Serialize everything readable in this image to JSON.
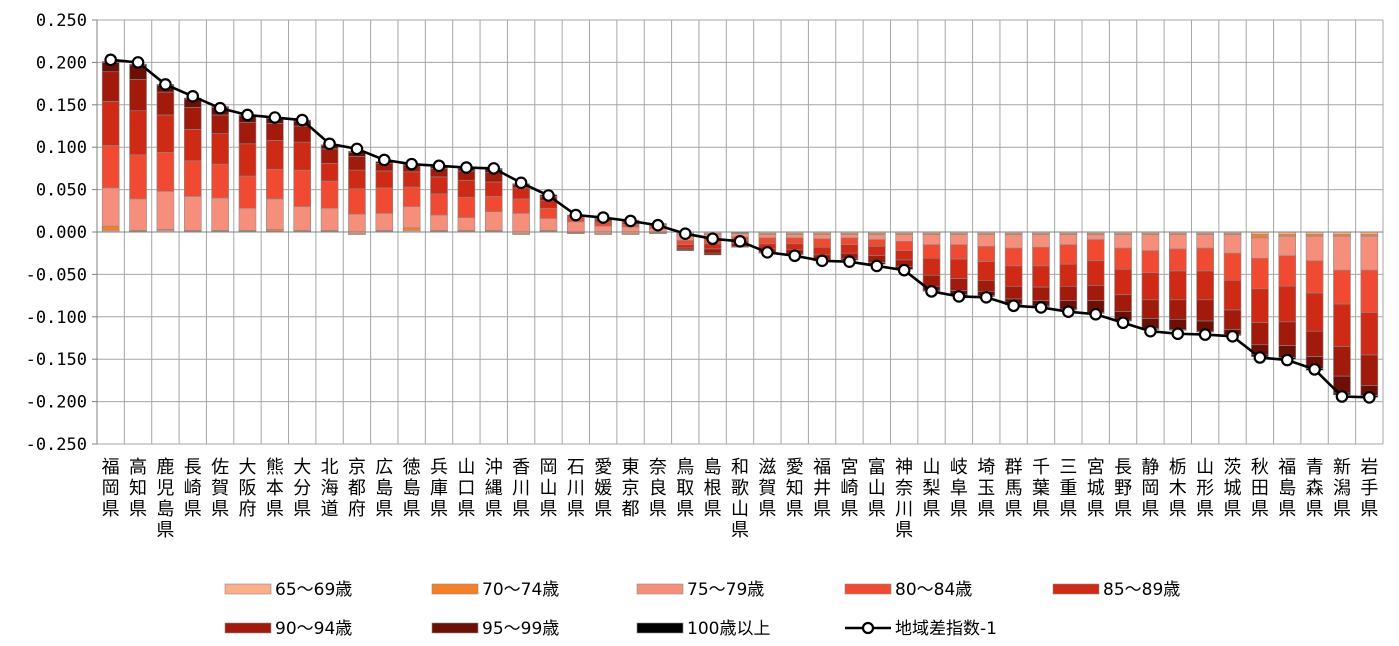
{
  "chart_data": {
    "type": "bar",
    "stacked": true,
    "ylim": [
      -0.25,
      0.25
    ],
    "yticks": [
      0.25,
      0.2,
      0.15,
      0.1,
      0.05,
      0.0,
      -0.05,
      -0.1,
      -0.15,
      -0.2,
      -0.25
    ],
    "ytick_labels": [
      "0.250",
      "0.200",
      "0.150",
      "0.100",
      "0.050",
      "0.000",
      "-0.050",
      "-0.100",
      "-0.150",
      "-0.200",
      "-0.250"
    ],
    "grid": true,
    "legend_position": "bottom",
    "categories": [
      "福岡県",
      "高知県",
      "鹿児島県",
      "長崎県",
      "佐賀県",
      "大阪府",
      "熊本県",
      "大分県",
      "北海道",
      "京都府",
      "広島県",
      "徳島県",
      "兵庫県",
      "山口県",
      "沖縄県",
      "香川県",
      "岡山県",
      "石川県",
      "愛媛県",
      "東京都",
      "奈良県",
      "鳥取県",
      "島根県",
      "和歌山県",
      "滋賀県",
      "愛知県",
      "福井県",
      "宮崎県",
      "富山県",
      "神奈川県",
      "山梨県",
      "岐阜県",
      "埼玉県",
      "群馬県",
      "千葉県",
      "三重県",
      "宮城県",
      "長野県",
      "静岡県",
      "栃木県",
      "山形県",
      "茨城県",
      "秋田県",
      "福島県",
      "青森県",
      "新潟県",
      "岩手県"
    ],
    "series": [
      {
        "name": "65～69歳",
        "color": "#fbb08a",
        "type": "bar",
        "values": [
          0.002,
          0.001,
          0.002,
          0.001,
          0.001,
          0.001,
          0.001,
          0.001,
          0.001,
          -0.002,
          0.001,
          0.002,
          0.001,
          0.001,
          0.001,
          -0.002,
          0.001,
          -0.001,
          -0.002,
          -0.002,
          -0.001,
          -0.002,
          -0.002,
          -0.001,
          -0.002,
          -0.002,
          -0.002,
          -0.002,
          -0.002,
          -0.002,
          -0.002,
          -0.002,
          -0.002,
          -0.002,
          -0.002,
          -0.002,
          -0.002,
          -0.002,
          -0.002,
          -0.002,
          -0.002,
          -0.002,
          -0.003,
          -0.003,
          -0.003,
          -0.003,
          -0.003
        ]
      },
      {
        "name": "70～74歳",
        "color": "#f57f26",
        "type": "bar",
        "values": [
          0.005,
          0.001,
          0.001,
          0.001,
          0.001,
          0.001,
          0.002,
          0.001,
          0.001,
          -0.001,
          0.001,
          0.003,
          0.001,
          0.001,
          0.001,
          -0.001,
          0.001,
          -0.001,
          -0.001,
          -0.001,
          -0.001,
          -0.001,
          -0.001,
          -0.001,
          -0.001,
          -0.001,
          -0.001,
          -0.001,
          -0.001,
          -0.001,
          -0.001,
          -0.001,
          -0.001,
          -0.001,
          -0.001,
          -0.001,
          -0.001,
          -0.001,
          -0.001,
          -0.001,
          -0.001,
          -0.001,
          -0.004,
          -0.002,
          -0.002,
          -0.002,
          -0.002
        ]
      },
      {
        "name": "75～79歳",
        "color": "#f58f7c",
        "type": "bar",
        "values": [
          0.045,
          0.037,
          0.045,
          0.04,
          0.038,
          0.026,
          0.036,
          0.028,
          0.026,
          0.021,
          0.02,
          0.025,
          0.018,
          0.015,
          0.022,
          0.022,
          0.014,
          0.012,
          0.007,
          0.006,
          0.004,
          -0.007,
          -0.005,
          -0.004,
          -0.004,
          -0.004,
          -0.005,
          -0.004,
          -0.006,
          -0.008,
          -0.012,
          -0.012,
          -0.014,
          -0.016,
          -0.015,
          -0.012,
          -0.006,
          -0.016,
          -0.019,
          -0.017,
          -0.016,
          -0.022,
          -0.024,
          -0.023,
          -0.029,
          -0.04,
          -0.04
        ]
      },
      {
        "name": "80～84歳",
        "color": "#f04b32",
        "type": "bar",
        "values": [
          0.05,
          0.052,
          0.046,
          0.042,
          0.04,
          0.038,
          0.035,
          0.043,
          0.032,
          0.03,
          0.03,
          0.023,
          0.025,
          0.024,
          0.018,
          0.017,
          0.012,
          0.006,
          0.004,
          0.003,
          0.004,
          -0.005,
          -0.006,
          -0.004,
          -0.007,
          -0.007,
          -0.01,
          -0.008,
          -0.008,
          -0.011,
          -0.016,
          -0.017,
          -0.018,
          -0.021,
          -0.022,
          -0.023,
          -0.025,
          -0.025,
          -0.026,
          -0.026,
          -0.027,
          -0.032,
          -0.036,
          -0.036,
          -0.038,
          -0.04,
          -0.05
        ]
      },
      {
        "name": "85～89歳",
        "color": "#cf2a16",
        "type": "bar",
        "values": [
          0.052,
          0.052,
          0.044,
          0.037,
          0.036,
          0.038,
          0.034,
          0.033,
          0.021,
          0.022,
          0.02,
          0.018,
          0.02,
          0.02,
          0.017,
          0.013,
          0.009,
          0.002,
          0.002,
          0.002,
          0.001,
          -0.004,
          -0.006,
          -0.004,
          -0.006,
          -0.007,
          -0.009,
          -0.01,
          -0.011,
          -0.011,
          -0.02,
          -0.023,
          -0.022,
          -0.024,
          -0.025,
          -0.026,
          -0.029,
          -0.03,
          -0.032,
          -0.034,
          -0.034,
          -0.035,
          -0.04,
          -0.042,
          -0.045,
          -0.05,
          -0.05
        ]
      },
      {
        "name": "90～94歳",
        "color": "#a11a0c",
        "type": "bar",
        "values": [
          0.035,
          0.037,
          0.027,
          0.026,
          0.022,
          0.025,
          0.02,
          0.019,
          0.017,
          0.016,
          0.009,
          0.008,
          0.01,
          0.011,
          0.011,
          0.004,
          0.005,
          0.0,
          0.002,
          0.002,
          0.001,
          -0.002,
          -0.005,
          -0.003,
          -0.004,
          -0.005,
          -0.006,
          -0.006,
          -0.008,
          -0.008,
          -0.013,
          -0.014,
          -0.013,
          -0.015,
          -0.016,
          -0.017,
          -0.018,
          -0.02,
          -0.022,
          -0.023,
          -0.025,
          -0.023,
          -0.026,
          -0.028,
          -0.03,
          -0.035,
          -0.036
        ]
      },
      {
        "name": "95～99歳",
        "color": "#6b0f07",
        "type": "bar",
        "values": [
          0.011,
          0.017,
          0.008,
          0.01,
          0.009,
          0.008,
          0.006,
          0.006,
          0.004,
          0.005,
          0.002,
          0.001,
          0.002,
          0.003,
          0.004,
          0.001,
          0.002,
          0.0,
          0.001,
          0.001,
          0.0,
          -0.001,
          -0.002,
          -0.001,
          -0.001,
          -0.001,
          -0.001,
          -0.002,
          -0.002,
          -0.003,
          -0.005,
          -0.005,
          -0.005,
          -0.006,
          -0.006,
          -0.01,
          -0.014,
          -0.01,
          -0.012,
          -0.012,
          -0.012,
          -0.006,
          -0.012,
          -0.014,
          -0.014,
          -0.02,
          -0.012
        ]
      },
      {
        "name": "100歳以上",
        "color": "#000000",
        "type": "bar",
        "values": [
          0.001,
          0.001,
          0.001,
          0.001,
          0.001,
          0.001,
          0.001,
          0.001,
          0.001,
          0.001,
          0.0,
          0.0,
          0.0,
          0.001,
          0.001,
          0.0,
          0.0,
          0.0,
          0.0,
          0.0,
          0.0,
          0.0,
          0.0,
          0.0,
          0.0,
          0.0,
          0.0,
          0.0,
          0.0,
          0.0,
          -0.001,
          -0.001,
          -0.001,
          -0.001,
          -0.001,
          -0.001,
          -0.001,
          -0.001,
          -0.001,
          -0.001,
          -0.001,
          -0.001,
          -0.002,
          -0.002,
          -0.002,
          -0.002,
          -0.002
        ]
      },
      {
        "name": "地域差指数-1",
        "color": "#000000",
        "type": "line",
        "values": [
          0.203,
          0.2,
          0.174,
          0.16,
          0.146,
          0.138,
          0.135,
          0.132,
          0.104,
          0.098,
          0.085,
          0.08,
          0.078,
          0.076,
          0.075,
          0.058,
          0.043,
          0.02,
          0.017,
          0.013,
          0.008,
          -0.002,
          -0.008,
          -0.011,
          -0.024,
          -0.028,
          -0.034,
          -0.035,
          -0.04,
          -0.045,
          -0.07,
          -0.076,
          -0.077,
          -0.087,
          -0.089,
          -0.094,
          -0.097,
          -0.107,
          -0.117,
          -0.12,
          -0.121,
          -0.123,
          -0.148,
          -0.151,
          -0.162,
          -0.194,
          -0.195
        ]
      }
    ]
  }
}
